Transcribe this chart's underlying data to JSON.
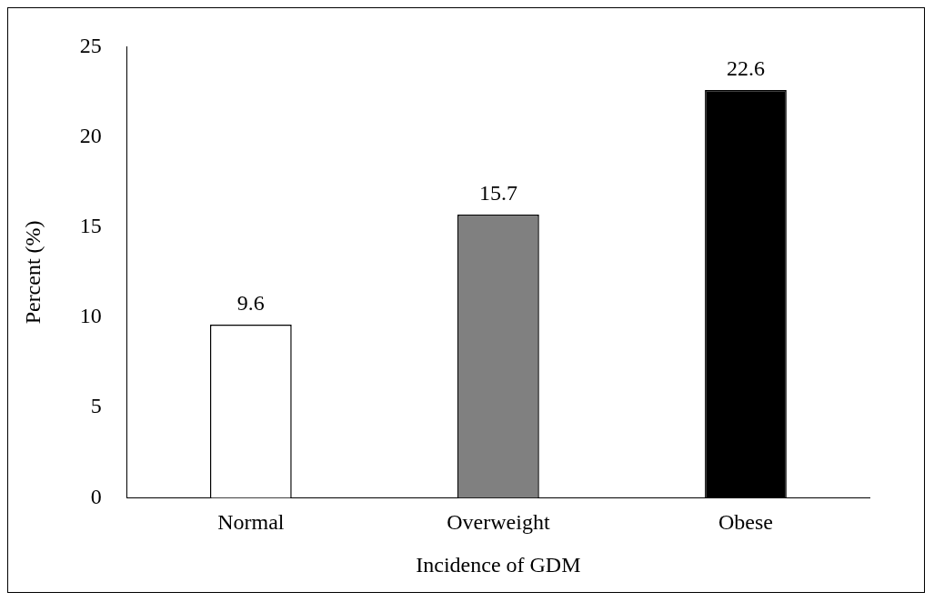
{
  "chart_data": {
    "type": "bar",
    "xlabel": "Incidence of GDM",
    "ylabel": "Percent (%)",
    "categories": [
      "Normal",
      "Overweight",
      "Obese"
    ],
    "values": [
      9.6,
      15.7,
      22.6
    ],
    "colors": [
      "#ffffff",
      "#808080",
      "#000000"
    ],
    "ylim": [
      0,
      25
    ],
    "yticks": [
      0,
      5,
      10,
      15,
      20,
      25
    ],
    "grid": false,
    "data_labels": true
  }
}
